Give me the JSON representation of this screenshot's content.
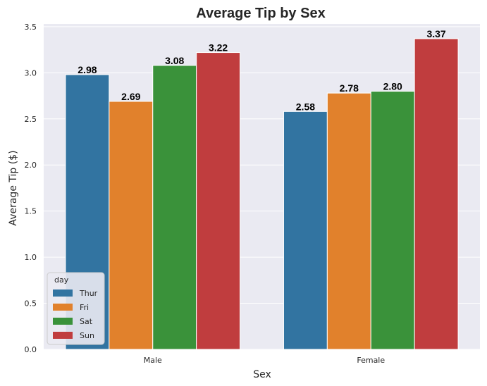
{
  "chart_data": {
    "type": "bar",
    "title": "Average Tip by Sex",
    "xlabel": "Sex",
    "ylabel": "Average Tip ($)",
    "categories": [
      "Male",
      "Female"
    ],
    "series": [
      {
        "name": "Thur",
        "color": "#3274a1",
        "values": [
          2.98,
          2.58
        ],
        "labels": [
          "2.98",
          "2.58"
        ]
      },
      {
        "name": "Fri",
        "color": "#e1812c",
        "values": [
          2.69,
          2.78
        ],
        "labels": [
          "2.69",
          "2.78"
        ]
      },
      {
        "name": "Sat",
        "color": "#3a923a",
        "values": [
          3.08,
          2.8
        ],
        "labels": [
          "3.08",
          "2.80"
        ]
      },
      {
        "name": "Sun",
        "color": "#c03d3e",
        "values": [
          3.22,
          3.37
        ],
        "labels": [
          "3.22",
          "3.37"
        ]
      }
    ],
    "ylim": [
      0,
      3.53
    ],
    "yticks": [
      0.0,
      0.5,
      1.0,
      1.5,
      2.0,
      2.5,
      3.0,
      3.5
    ],
    "ytick_labels": [
      "0.0",
      "0.5",
      "1.0",
      "1.5",
      "2.0",
      "2.5",
      "3.0",
      "3.5"
    ],
    "grid": true,
    "legend": {
      "title": "day",
      "placement": "lower-left"
    }
  }
}
